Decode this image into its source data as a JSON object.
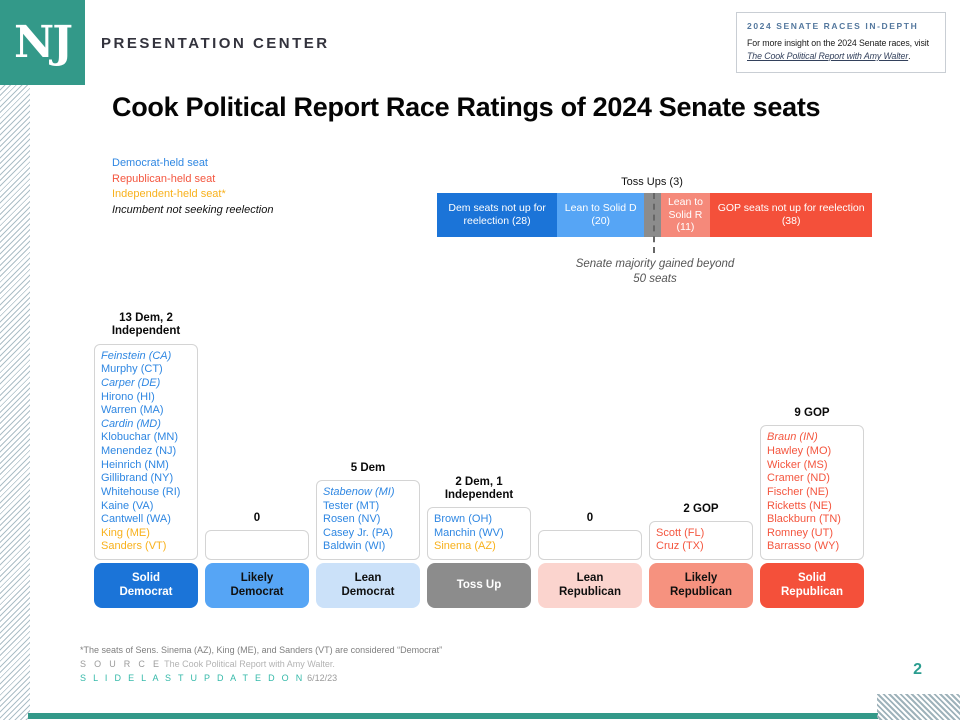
{
  "header": {
    "logo_text": "NJ",
    "brand": "PRESENTATION CENTER",
    "series_tag": "2024 SENATE RACES IN-DEPTH",
    "promo_line1": "For more insight on the 2024 Senate races, visit",
    "promo_link": "The Cook Political Report with Amy Walter",
    "promo_suffix": "."
  },
  "title": "Cook Political Report Race Ratings of 2024 Senate seats",
  "legend": {
    "dem": "Democrat-held seat",
    "gop": "Republican-held seat",
    "ind": "Independent-held seat*",
    "open": "Incumbent not seeking reelection"
  },
  "palette": {
    "brand_teal": "#339989",
    "dem_blue": "#2f87e2",
    "gop_red": "#f4563f",
    "ind_orange": "#f8b11c",
    "tossup_gray": "#8c8c8c"
  },
  "bar": {
    "tossup_label": "Toss Ups (3)",
    "majority_note": "Senate majority gained beyond 50 seats",
    "segments": [
      {
        "label": "Dem seats not up for reelection (28)",
        "value": 28,
        "color": "#1b74d8"
      },
      {
        "label": "Lean to Solid D (20)",
        "value": 20,
        "color": "#56a5f5"
      },
      {
        "label": "",
        "value": 3,
        "color": "#8c8c8c"
      },
      {
        "label": "Lean to Solid R (11)",
        "value": 11,
        "color": "#f5897a"
      },
      {
        "label": "GOP seats not up for reelection (38)",
        "value": 38,
        "color": "#f4503a"
      }
    ]
  },
  "columns": [
    {
      "header": "13 Dem, 2 Independent",
      "pill": "Solid Democrat",
      "pill_color": "#1b74d8",
      "names": [
        {
          "text": "Feinstein (CA)"
        },
        {
          "text": "Murphy (CT)"
        },
        {
          "text": "Carper (DE)"
        },
        {
          "text": "Hirono (HI)"
        },
        {
          "text": "Warren (MA)"
        },
        {
          "text": "Cardin (MD)"
        },
        {
          "text": "Klobuchar (MN)"
        },
        {
          "text": "Menendez (NJ)"
        },
        {
          "text": "Heinrich (NM)"
        },
        {
          "text": "Gillibrand (NY)"
        },
        {
          "text": "Whitehouse (RI)"
        },
        {
          "text": "Kaine (VA)"
        },
        {
          "text": "Cantwell (WA)"
        },
        {
          "text": "King (ME)"
        },
        {
          "text": "Sanders (VT)"
        }
      ]
    },
    {
      "header": "0",
      "pill": "Likely Democrat",
      "pill_color": "#56a5f5",
      "names": []
    },
    {
      "header": "5 Dem",
      "pill": "Lean Democrat",
      "pill_color": "#cbe1f9",
      "names": [
        {
          "text": "Stabenow (MI)"
        },
        {
          "text": "Tester (MT)"
        },
        {
          "text": "Rosen (NV)"
        },
        {
          "text": "Casey Jr. (PA)"
        },
        {
          "text": "Baldwin (WI)"
        }
      ]
    },
    {
      "header": "2 Dem, 1 Independent",
      "pill": "Toss Up",
      "pill_color": "#8c8c8c",
      "names": [
        {
          "text": "Brown (OH)"
        },
        {
          "text": "Manchin (WV)"
        },
        {
          "text": "Sinema (AZ)"
        }
      ]
    },
    {
      "header": "0",
      "pill": "Lean Republican",
      "pill_color": "#fbd4ce",
      "names": []
    },
    {
      "header": "2 GOP",
      "pill": "Likely Republican",
      "pill_color": "#f6927f",
      "names": [
        {
          "text": "Scott (FL)"
        },
        {
          "text": "Cruz (TX)"
        }
      ]
    },
    {
      "header": "9 GOP",
      "pill": "Solid Republican",
      "pill_color": "#f4503a",
      "names": [
        {
          "text": "Braun (IN)"
        },
        {
          "text": "Hawley (MO)"
        },
        {
          "text": "Wicker (MS)"
        },
        {
          "text": "Cramer (ND)"
        },
        {
          "text": "Fischer (NE)"
        },
        {
          "text": "Ricketts (NE)"
        },
        {
          "text": "Blackburn (TN)"
        },
        {
          "text": "Romney (UT)"
        },
        {
          "text": "Barrasso (WY)"
        }
      ]
    }
  ],
  "footer": {
    "footnote": "*The seats of Sens. Sinema (AZ), King (ME), and Sanders (VT) are considered “Democrat”",
    "source_label": "S O U R C E",
    "source_text": "The Cook Political Report with Amy Walter.",
    "updated_label": "S L I D E   L A S T   U P D A T E D   O N",
    "updated_date": "6/12/23"
  },
  "page_number": "2",
  "chart_data": {
    "type": "bar",
    "title": "Cook Political Report Race Ratings of 2024 Senate seats",
    "stacked_bar": {
      "unit": "Senate seats",
      "total": 100,
      "segments": [
        {
          "label": "Dem seats not up for reelection",
          "value": 28
        },
        {
          "label": "Lean to Solid D",
          "value": 20
        },
        {
          "label": "Toss Ups",
          "value": 3
        },
        {
          "label": "Lean to Solid R",
          "value": 11
        },
        {
          "label": "GOP seats not up for reelection",
          "value": 38
        }
      ],
      "annotation": "Senate majority gained beyond 50 seats"
    },
    "ratings": [
      {
        "rating": "Solid Democrat",
        "count_label": "13 Dem, 2 Independent",
        "count": 15,
        "seats": [
          "Feinstein (CA)",
          "Murphy (CT)",
          "Carper (DE)",
          "Hirono (HI)",
          "Warren (MA)",
          "Cardin (MD)",
          "Klobuchar (MN)",
          "Menendez (NJ)",
          "Heinrich (NM)",
          "Gillibrand (NY)",
          "Whitehouse (RI)",
          "Kaine (VA)",
          "Cantwell (WA)",
          "King (ME)",
          "Sanders (VT)"
        ]
      },
      {
        "rating": "Likely Democrat",
        "count_label": "0",
        "count": 0,
        "seats": []
      },
      {
        "rating": "Lean Democrat",
        "count_label": "5 Dem",
        "count": 5,
        "seats": [
          "Stabenow (MI)",
          "Tester (MT)",
          "Rosen (NV)",
          "Casey Jr. (PA)",
          "Baldwin (WI)"
        ]
      },
      {
        "rating": "Toss Up",
        "count_label": "2 Dem, 1 Independent",
        "count": 3,
        "seats": [
          "Brown (OH)",
          "Manchin (WV)",
          "Sinema (AZ)"
        ]
      },
      {
        "rating": "Lean Republican",
        "count_label": "0",
        "count": 0,
        "seats": []
      },
      {
        "rating": "Likely Republican",
        "count_label": "2 GOP",
        "count": 2,
        "seats": [
          "Scott (FL)",
          "Cruz (TX)"
        ]
      },
      {
        "rating": "Solid Republican",
        "count_label": "9 GOP",
        "count": 9,
        "seats": [
          "Braun (IN)",
          "Hawley (MO)",
          "Wicker (MS)",
          "Cramer (ND)",
          "Fischer (NE)",
          "Ricketts (NE)",
          "Blackburn (TN)",
          "Romney (UT)",
          "Barrasso (WY)"
        ]
      }
    ],
    "independent_seats": [
      "King (ME)",
      "Sanders (VT)",
      "Sinema (AZ)"
    ],
    "open_seats_not_seeking_reelection": [
      "Feinstein (CA)",
      "Carper (DE)",
      "Cardin (MD)",
      "Stabenow (MI)",
      "Braun (IN)"
    ]
  }
}
